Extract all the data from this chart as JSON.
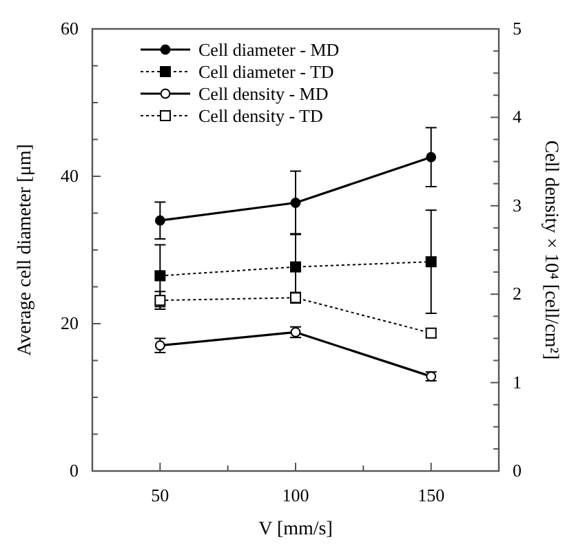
{
  "chart_data": {
    "type": "line",
    "xlabel": "V [mm/s]",
    "ylabel": "Average cell diameter [μm]",
    "y2label": "Cell density × 10⁴ [cell/cm²]",
    "x": [
      50,
      100,
      150
    ],
    "xlim": [
      25,
      175
    ],
    "xticks": [
      {
        "value": 25,
        "label": null
      },
      50,
      {
        "value": 75,
        "label": null
      },
      100,
      {
        "value": 125,
        "label": null
      },
      150,
      {
        "value": 175,
        "label": null
      }
    ],
    "ylim": [
      0,
      60
    ],
    "yticks": [
      0,
      {
        "value": 5,
        "label": null
      },
      {
        "value": 10,
        "label": null
      },
      {
        "value": 15,
        "label": null
      },
      20,
      {
        "value": 25,
        "label": null
      },
      {
        "value": 30,
        "label": null
      },
      {
        "value": 35,
        "label": null
      },
      40,
      {
        "value": 45,
        "label": null
      },
      {
        "value": 50,
        "label": null
      },
      {
        "value": 55,
        "label": null
      },
      60
    ],
    "y2lim": [
      0,
      5
    ],
    "y2ticks": [
      0,
      {
        "value": 0.25,
        "label": null
      },
      {
        "value": 0.5,
        "label": null
      },
      {
        "value": 0.75,
        "label": null
      },
      1,
      {
        "value": 1.25,
        "label": null
      },
      {
        "value": 1.5,
        "label": null
      },
      {
        "value": 1.75,
        "label": null
      },
      2,
      {
        "value": 2.25,
        "label": null
      },
      {
        "value": 2.5,
        "label": null
      },
      {
        "value": 2.75,
        "label": null
      },
      3,
      {
        "value": 3.25,
        "label": null
      },
      {
        "value": 3.5,
        "label": null
      },
      {
        "value": 3.75,
        "label": null
      },
      4,
      {
        "value": 4.25,
        "label": null
      },
      {
        "value": 4.5,
        "label": null
      },
      {
        "value": 4.75,
        "label": null
      },
      5
    ],
    "grid": false,
    "legend": "top left",
    "series": [
      {
        "name": "Cell diameter - MD",
        "color": "#000000",
        "values": [
          34.0,
          36.4,
          42.6
        ],
        "errors": [
          2.5,
          4.3,
          4.0
        ],
        "marker": "circle",
        "line_style": "solid"
      },
      {
        "name": "Cell diameter - TD",
        "color": "#000000",
        "values": [
          26.5,
          27.7,
          28.4
        ],
        "errors": [
          4.2,
          4.5,
          7.0
        ],
        "marker": "square",
        "line_style": "dotted"
      },
      {
        "name": "Cell density - MD",
        "color": "#000000",
        "values": [
          1.42,
          1.57,
          1.07
        ],
        "errors": [
          0.08,
          0.06,
          0.05
        ],
        "marker": "circle",
        "line_style": "solid",
        "axis": "y2"
      },
      {
        "name": "Cell density - TD",
        "color": "#000000",
        "values": [
          1.93,
          1.96,
          1.56
        ],
        "errors": [
          0.1,
          0.06,
          0.05
        ],
        "marker": "square",
        "line_style": "dotted",
        "axis": "y2"
      }
    ]
  }
}
